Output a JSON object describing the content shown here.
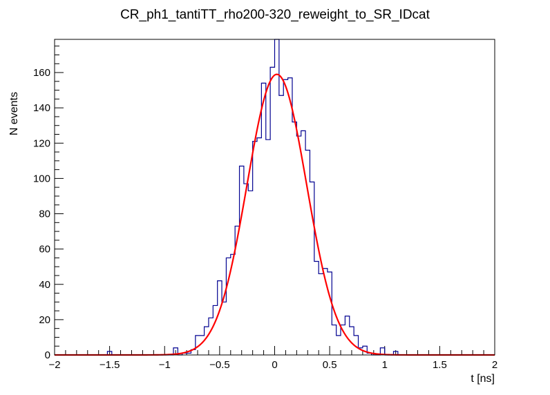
{
  "chart_data": {
    "type": "bar",
    "subtype": "histogram-with-fit",
    "title": "CR_ph1_tantiTT_rho200-320_reweight_to_SR_IDcat",
    "xlabel": "t [ns]",
    "ylabel": "N events",
    "xlim": [
      -2,
      2
    ],
    "ylim": [
      0,
      178.8
    ],
    "grid": false,
    "x_ticks": [
      -2,
      -1.5,
      -1,
      -0.5,
      0,
      0.5,
      1,
      1.5,
      2
    ],
    "x_tick_labels": [
      "−2",
      "−1.5",
      "−1",
      "−0.5",
      "0",
      "0.5",
      "1",
      "1.5",
      "2"
    ],
    "y_ticks": [
      0,
      20,
      40,
      60,
      80,
      100,
      120,
      140,
      160
    ],
    "y_tick_labels": [
      "0",
      "20",
      "40",
      "60",
      "80",
      "100",
      "120",
      "140",
      "160"
    ],
    "bin_edges_start": -2,
    "bin_width": 0.04,
    "series": [
      {
        "name": "histogram",
        "color": "#000090",
        "values": [
          0,
          0,
          0,
          0,
          0,
          0,
          0,
          0,
          0,
          0,
          0,
          0,
          2,
          0,
          0,
          0,
          0,
          0,
          0,
          0,
          0,
          0,
          0,
          0,
          0,
          0,
          0,
          4,
          0,
          1,
          1,
          3,
          11,
          11,
          16,
          21,
          28,
          42,
          30,
          55,
          57,
          73,
          107,
          97,
          93,
          121,
          123,
          154,
          122,
          163,
          185,
          147,
          156,
          157,
          132,
          124,
          127,
          116,
          98,
          53,
          46,
          49,
          47,
          17,
          11,
          17,
          22,
          16,
          11,
          4,
          5,
          1,
          0,
          0,
          4,
          0,
          0,
          2,
          0,
          0,
          0,
          0,
          0,
          0,
          0,
          0,
          0,
          0,
          0,
          0,
          0,
          0,
          0,
          0,
          0,
          0,
          0,
          0,
          0,
          0
        ]
      },
      {
        "name": "gaussian fit",
        "color": "#ff0000",
        "function": "gaus",
        "constant": 159,
        "mean": 0.02,
        "sigma": 0.271
      }
    ]
  }
}
